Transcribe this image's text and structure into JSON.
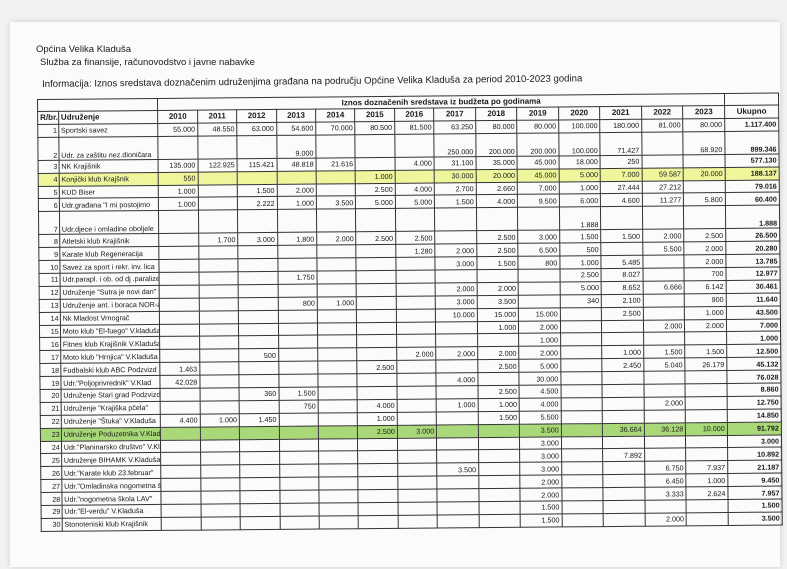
{
  "header": {
    "municipality": "Općina Velika Kladuša",
    "department": "Služba za finansije, računovodstvo i javne nabavke",
    "info": "Informacija: Iznos sredstava doznačenim udruženjima građana na području Općine Velika Kladuša za period 2010-2023 godina"
  },
  "table": {
    "col_rb": "R/br.",
    "col_name": "Udruženje",
    "super_header": "Iznos doznačenih sredstava iz budžeta po godinama",
    "years": [
      "2010",
      "2011",
      "2012",
      "2013",
      "2014",
      "2015",
      "2016",
      "2017",
      "2018",
      "2019",
      "2020",
      "2021",
      "2022",
      "2023"
    ],
    "col_total": "Ukupno",
    "rows": [
      {
        "rb": "1",
        "name": "Sportski savez",
        "v": [
          "55.000",
          "48.550",
          "63.000",
          "54.600",
          "70.000",
          "80.500",
          "81.500",
          "63.250",
          "80.000",
          "80.000",
          "100.000",
          "180.000",
          "81.000",
          "80.000"
        ],
        "total": "1.117.400"
      },
      {
        "rb": "2",
        "name": "Udr. za zaštitu nez.dioničara",
        "v": [
          "",
          "",
          "",
          "9.000",
          "",
          "",
          "",
          "250.000",
          "200.000",
          "200.000",
          "100.000",
          "71.427",
          "",
          "68.920"
        ],
        "total": "899.346"
      },
      {
        "rb": "3",
        "name": "NK Krajišnik",
        "v": [
          "135.000",
          "122.925",
          "115.421",
          "48.818",
          "21.616",
          "",
          "4.000",
          "31.100",
          "35.000",
          "45.000",
          "18.000",
          "250",
          "",
          ""
        ],
        "total": "577.130"
      },
      {
        "rb": "4",
        "name": "Konjički klub Krajšnik",
        "v": [
          "550",
          "",
          "",
          "",
          "",
          "1.000",
          "",
          "30.000",
          "20.000",
          "45.000",
          "5.000",
          "7.000",
          "59.587",
          "20.000"
        ],
        "total": "188.137"
      },
      {
        "rb": "5",
        "name": "KUD Biser",
        "v": [
          "1.000",
          "",
          "1.500",
          "2.000",
          "",
          "2.500",
          "4.000",
          "2.700",
          "2.660",
          "7.000",
          "1.000",
          "27.444",
          "27.212",
          ""
        ],
        "total": "79.016"
      },
      {
        "rb": "6",
        "name": "Udr.građana \"I mi postojimo",
        "v": [
          "1.000",
          "",
          "2.222",
          "1.000",
          "3.500",
          "5.000",
          "5.000",
          "1.500",
          "4.000",
          "9.500",
          "6.000",
          "4.600",
          "11.277",
          "5.800"
        ],
        "total": "60.400"
      },
      {
        "rb": "7",
        "name": "Udr.djece i omladine oboljele",
        "v": [
          "",
          "",
          "",
          "",
          "",
          "",
          "",
          "",
          "",
          "",
          "1.888",
          "",
          "",
          ""
        ],
        "total": "1.888"
      },
      {
        "rb": "8",
        "name": "Atletski klub Krajišnik",
        "v": [
          "",
          "1.700",
          "3.000",
          "1.800",
          "2.000",
          "2.500",
          "2.500",
          "",
          "2.500",
          "3.000",
          "1.500",
          "1.500",
          "2.000",
          "2.500"
        ],
        "total": "26.500"
      },
      {
        "rb": "9",
        "name": "Karate klub Regeneracija",
        "v": [
          "",
          "",
          "",
          "",
          "",
          "",
          "1.280",
          "2.000",
          "2.500",
          "6.500",
          "500",
          "",
          "5.500",
          "2.000"
        ],
        "total": "20.280"
      },
      {
        "rb": "10",
        "name": "Savez za sport i rekr. inv. lica",
        "v": [
          "",
          "",
          "",
          "",
          "",
          "",
          "",
          "3.000",
          "1.500",
          "800",
          "1.000",
          "5.485",
          "",
          "2.000"
        ],
        "total": "13.785"
      },
      {
        "rb": "11",
        "name": "Udr.parapl. i ob. od dj .paralize",
        "v": [
          "",
          "",
          "",
          "1.750",
          "",
          "",
          "",
          "",
          "",
          "",
          "2.500",
          "8.027",
          "",
          "700"
        ],
        "total": "12.977"
      },
      {
        "rb": "12",
        "name": "Udruženje \"Sutra je novi dan\"",
        "v": [
          "",
          "",
          "",
          "",
          "",
          "",
          "",
          "2.000",
          "2.000",
          "",
          "5.000",
          "8.652",
          "6.666",
          "6.142"
        ],
        "total": "30.461"
      },
      {
        "rb": "13",
        "name": "Udruženje ant. i boraca NOR-a",
        "v": [
          "",
          "",
          "",
          "800",
          "1.000",
          "",
          "",
          "3.000",
          "3.500",
          "",
          "340",
          "2.100",
          "",
          "900"
        ],
        "total": "11.640"
      },
      {
        "rb": "14",
        "name": "Nk Mladost Vrnograč",
        "v": [
          "",
          "",
          "",
          "",
          "",
          "",
          "",
          "10.000",
          "15.000",
          "15.000",
          "",
          "2.500",
          "",
          "1.000"
        ],
        "total": "43.500"
      },
      {
        "rb": "15",
        "name": "Moto klub \"El-fuego\" V.kladuša",
        "v": [
          "",
          "",
          "",
          "",
          "",
          "",
          "",
          "",
          "1.000",
          "2.000",
          "",
          "",
          "2.000",
          "2.000"
        ],
        "total": "7.000"
      },
      {
        "rb": "16",
        "name": "Fitnes klub Krajišnik V.Kladuša",
        "v": [
          "",
          "",
          "",
          "",
          "",
          "",
          "",
          "",
          "",
          "1.000",
          "",
          "",
          "",
          ""
        ],
        "total": "1.000"
      },
      {
        "rb": "17",
        "name": "Moto klub \"Hrnjica\" V.Kladuša",
        "v": [
          "",
          "",
          "500",
          "",
          "",
          "",
          "2.000",
          "2.000",
          "2.000",
          "2.000",
          "",
          "1.000",
          "1.500",
          "1.500"
        ],
        "total": "12.500"
      },
      {
        "rb": "18",
        "name": "Fudbalski klub ABC Podzvizd",
        "v": [
          "1.463",
          "",
          "",
          "",
          "",
          "2.500",
          "",
          "",
          "2.500",
          "5.000",
          "",
          "2.450",
          "5.040",
          "26.179"
        ],
        "total": "45.132"
      },
      {
        "rb": "19",
        "name": "Udr.\"Poljoprivrednik\" V.Klad",
        "v": [
          "42.028",
          "",
          "",
          "",
          "",
          "",
          "",
          "4.000",
          "",
          "30.000",
          "",
          "",
          "",
          ""
        ],
        "total": "76.028"
      },
      {
        "rb": "20",
        "name": "Udruženje Stari grad Podzvizd",
        "v": [
          "",
          "",
          "360",
          "1.500",
          "",
          "",
          "",
          "",
          "2.500",
          "4.500",
          "",
          "",
          "",
          ""
        ],
        "total": "8.860"
      },
      {
        "rb": "21",
        "name": "Udruženje \"Krajiška pčela\"",
        "v": [
          "",
          "",
          "",
          "750",
          "",
          "4.000",
          "",
          "1.000",
          "1.000",
          "4.000",
          "",
          "",
          "2.000",
          ""
        ],
        "total": "12.750"
      },
      {
        "rb": "22",
        "name": "Udruženje \"Štuka\" V.Kladuša",
        "v": [
          "4.400",
          "1.000",
          "1.450",
          "",
          "",
          "1.000",
          "",
          "",
          "1.500",
          "5.500",
          "",
          "",
          "",
          ""
        ],
        "total": "14.850"
      },
      {
        "rb": "23",
        "name": "Udruženje Poduzetnika V.Kladuša",
        "v": [
          "",
          "",
          "",
          "",
          "",
          "2.500",
          "3.000",
          "",
          "",
          "3.500",
          "",
          "36.664",
          "36.128",
          "10.000"
        ],
        "total": "91.792"
      },
      {
        "rb": "24",
        "name": "Udr.\"Planinarsko društvo\" V.Kladuša",
        "v": [
          "",
          "",
          "",
          "",
          "",
          "",
          "",
          "",
          "",
          "3.000",
          "",
          "",
          "",
          ""
        ],
        "total": "3.000"
      },
      {
        "rb": "25",
        "name": "Udruženje BIHAMK V.Kladuša",
        "v": [
          "",
          "",
          "",
          "",
          "",
          "",
          "",
          "",
          "",
          "3.000",
          "",
          "7.892",
          "",
          ""
        ],
        "total": "10.892"
      },
      {
        "rb": "26",
        "name": "Udr.\"Karate klub 23.februar\"",
        "v": [
          "",
          "",
          "",
          "",
          "",
          "",
          "",
          "3.500",
          "",
          "3.000",
          "",
          "",
          "6.750",
          "7.937"
        ],
        "total": "21.187"
      },
      {
        "rb": "27",
        "name": "Udr.\"Omladinska nogometna škola\"",
        "v": [
          "",
          "",
          "",
          "",
          "",
          "",
          "",
          "",
          "",
          "2.000",
          "",
          "",
          "6.450",
          "1.000"
        ],
        "total": "9.450"
      },
      {
        "rb": "28",
        "name": "Udr.\"nogometna škola LAV\"",
        "v": [
          "",
          "",
          "",
          "",
          "",
          "",
          "",
          "",
          "",
          "2.000",
          "",
          "",
          "3.333",
          "2.624"
        ],
        "total": "7.957"
      },
      {
        "rb": "29",
        "name": "Udr.\"El-verdu\" V.Kladuša",
        "v": [
          "",
          "",
          "",
          "",
          "",
          "",
          "",
          "",
          "",
          "1.500",
          "",
          "",
          "",
          ""
        ],
        "total": "1.500"
      },
      {
        "rb": "30",
        "name": "Stonoteniski klub Krajišnik",
        "v": [
          "",
          "",
          "",
          "",
          "",
          "",
          "",
          "",
          "",
          "1.500",
          "",
          "",
          "2.000",
          ""
        ],
        "total": "3.500"
      }
    ]
  }
}
